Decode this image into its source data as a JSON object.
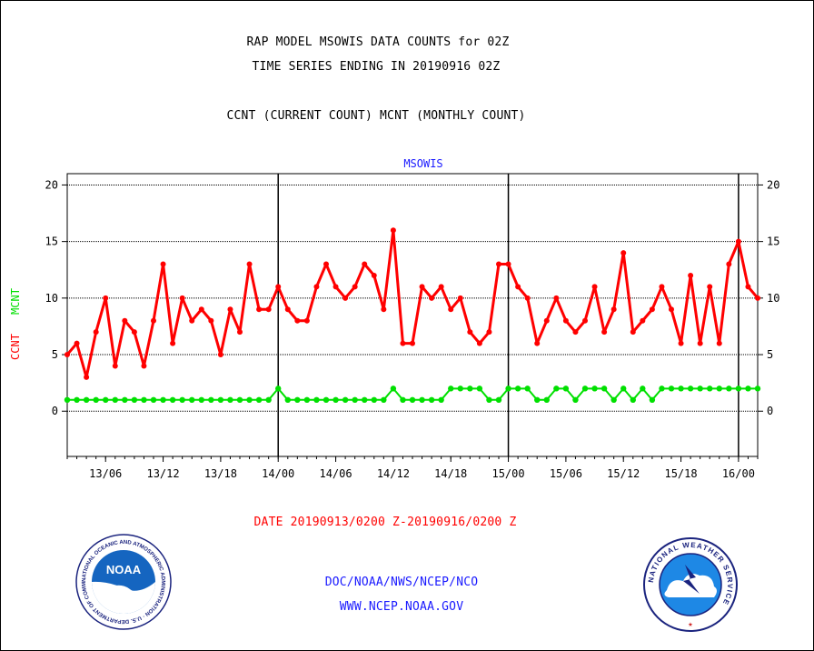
{
  "header": {
    "line1": "RAP MODEL MSOWIS DATA COUNTS for 02Z",
    "line2": "TIME SERIES ENDING IN 20190916 02Z",
    "line3": "CCNT (CURRENT COUNT) MCNT (MONTHLY COUNT)"
  },
  "footer": {
    "date_range": "DATE 20190913/0200 Z-20190916/0200 Z",
    "org": "DOC/NOAA/NWS/NCEP/NCO",
    "url": "WWW.NCEP.NOAA.GOV"
  },
  "logos": {
    "noaa": {
      "name": "noaa-seal-icon",
      "text": "NOAA",
      "ring_text": "NATIONAL OCEANIC AND ATMOSPHERIC ADMINISTRATION · U.S. DEPARTMENT OF COMMERCE"
    },
    "nws": {
      "name": "nws-seal-icon",
      "ring_text": "NATIONAL WEATHER SERVICE"
    }
  },
  "colors": {
    "ccnt": "#ff0000",
    "mcnt": "#00e000",
    "title": "#1a1aff",
    "date": "#ff0000"
  },
  "chart_data": {
    "type": "line",
    "title": "MSOWIS",
    "ylabel_ccnt": "CCNT",
    "ylabel_mcnt": "MCNT",
    "xlabel": "",
    "x_range_hours": [
      0,
      72
    ],
    "x_start": "2019-09-13 02Z",
    "x_end": "2019-09-16 02Z",
    "ylim": [
      -4,
      21
    ],
    "yticks": [
      0,
      5,
      10,
      15,
      20
    ],
    "grid": true,
    "x_tick_labels": [
      {
        "label": "13/06",
        "hour": 4
      },
      {
        "label": "13/12",
        "hour": 10
      },
      {
        "label": "13/18",
        "hour": 16
      },
      {
        "label": "14/00",
        "hour": 22
      },
      {
        "label": "14/06",
        "hour": 28
      },
      {
        "label": "14/12",
        "hour": 34
      },
      {
        "label": "14/18",
        "hour": 40
      },
      {
        "label": "15/00",
        "hour": 46
      },
      {
        "label": "15/06",
        "hour": 52
      },
      {
        "label": "15/12",
        "hour": 58
      },
      {
        "label": "15/18",
        "hour": 64
      },
      {
        "label": "16/00",
        "hour": 70
      }
    ],
    "day_boundaries_hours": [
      22,
      46,
      70
    ],
    "series": [
      {
        "name": "CCNT",
        "color": "#ff0000",
        "values": [
          5,
          6,
          3,
          7,
          10,
          4,
          8,
          7,
          4,
          8,
          13,
          6,
          10,
          8,
          9,
          8,
          5,
          9,
          7,
          13,
          9,
          9,
          11,
          9,
          8,
          8,
          11,
          13,
          11,
          10,
          11,
          13,
          12,
          9,
          16,
          6,
          6,
          11,
          10,
          11,
          9,
          10,
          7,
          6,
          7,
          13,
          13,
          11,
          10,
          6,
          8,
          10,
          8,
          7,
          8,
          11,
          7,
          9,
          14,
          7,
          8,
          9,
          11,
          9,
          6,
          12,
          6,
          11,
          6,
          13,
          15,
          11,
          10
        ]
      },
      {
        "name": "MCNT",
        "color": "#00e000",
        "values": [
          1,
          1,
          1,
          1,
          1,
          1,
          1,
          1,
          1,
          1,
          1,
          1,
          1,
          1,
          1,
          1,
          1,
          1,
          1,
          1,
          1,
          1,
          2,
          1,
          1,
          1,
          1,
          1,
          1,
          1,
          1,
          1,
          1,
          1,
          2,
          1,
          1,
          1,
          1,
          1,
          2,
          2,
          2,
          2,
          1,
          1,
          2,
          2,
          2,
          1,
          1,
          2,
          2,
          1,
          2,
          2,
          2,
          1,
          2,
          1,
          2,
          1,
          2,
          2,
          2,
          2,
          2,
          2,
          2,
          2,
          2,
          2,
          2
        ]
      }
    ]
  }
}
